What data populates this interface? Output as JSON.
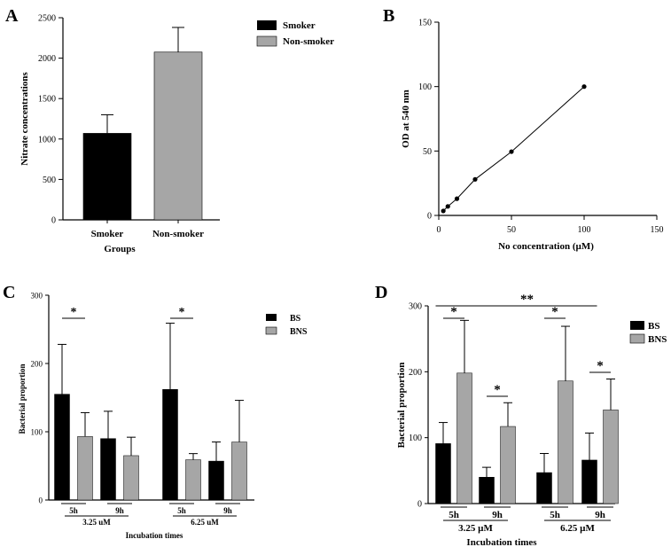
{
  "chart_data": [
    {
      "panel": "A",
      "type": "bar",
      "title": "",
      "xlabel": "Groups",
      "ylabel": "Nitrate concentrations",
      "categories": [
        "Smoker",
        "Non-smoker"
      ],
      "values": [
        1070,
        2075
      ],
      "errors": [
        230,
        305
      ],
      "colors": [
        "#000000",
        "#a6a6a6"
      ],
      "ylim": [
        0,
        2500
      ],
      "yticks": [
        0,
        500,
        1000,
        1500,
        2000,
        2500
      ],
      "legend": [
        "Smoker",
        "Non-smoker"
      ],
      "legend_position": "top-right"
    },
    {
      "panel": "B",
      "type": "line",
      "title": "",
      "xlabel": "No concentration (µM)",
      "ylabel": "OD at 540 nm",
      "x": [
        3.125,
        6.25,
        12.5,
        25,
        50,
        100
      ],
      "y": [
        3.5,
        7,
        13,
        28,
        49.5,
        100
      ],
      "xlim": [
        0,
        150
      ],
      "ylim": [
        0,
        150
      ],
      "xticks": [
        0,
        50,
        100,
        150
      ],
      "yticks": [
        0,
        50,
        100,
        150
      ]
    },
    {
      "panel": "C",
      "type": "bar",
      "title": "",
      "xlabel": "Incubation times",
      "ylabel": "Bacterial proportion",
      "time_labels": [
        "5h",
        "9h",
        "5h",
        "9h"
      ],
      "conc_labels": [
        "3.25 uM",
        "6.25 uM"
      ],
      "series": [
        {
          "name": "BS",
          "color": "#000000",
          "values": [
            155,
            90,
            162,
            57
          ],
          "errors": [
            73,
            40,
            97,
            28
          ]
        },
        {
          "name": "BNS",
          "color": "#a6a6a6",
          "values": [
            93,
            65,
            59,
            85
          ],
          "errors": [
            35,
            27,
            9,
            61
          ]
        }
      ],
      "ylim": [
        0,
        300
      ],
      "yticks": [
        0,
        100,
        200,
        300
      ],
      "legend_position": "top-right",
      "significance": [
        {
          "label": "*",
          "group": 0
        },
        {
          "label": "*",
          "group": 2
        }
      ]
    },
    {
      "panel": "D",
      "type": "bar",
      "title": "",
      "xlabel": "Incubation times",
      "ylabel": "Bacterial proportion",
      "time_labels": [
        "5h",
        "9h",
        "5h",
        "9h"
      ],
      "conc_labels": [
        "3.25 µM",
        "6.25 µM"
      ],
      "series": [
        {
          "name": "BS",
          "color": "#000000",
          "values": [
            91,
            40,
            47,
            66
          ],
          "errors": [
            32,
            15,
            29,
            41
          ]
        },
        {
          "name": "BNS",
          "color": "#a6a6a6",
          "values": [
            198,
            117,
            186,
            142
          ],
          "errors": [
            80,
            36,
            83,
            47
          ]
        }
      ],
      "ylim": [
        0,
        300
      ],
      "yticks": [
        0,
        100,
        200,
        300
      ],
      "legend_position": "top-right",
      "significance": [
        {
          "label": "*",
          "group": 0
        },
        {
          "label": "*",
          "group": 1
        },
        {
          "label": "*",
          "group": 2
        },
        {
          "label": "*",
          "group": 3
        },
        {
          "label": "**",
          "group": "all"
        }
      ]
    }
  ]
}
